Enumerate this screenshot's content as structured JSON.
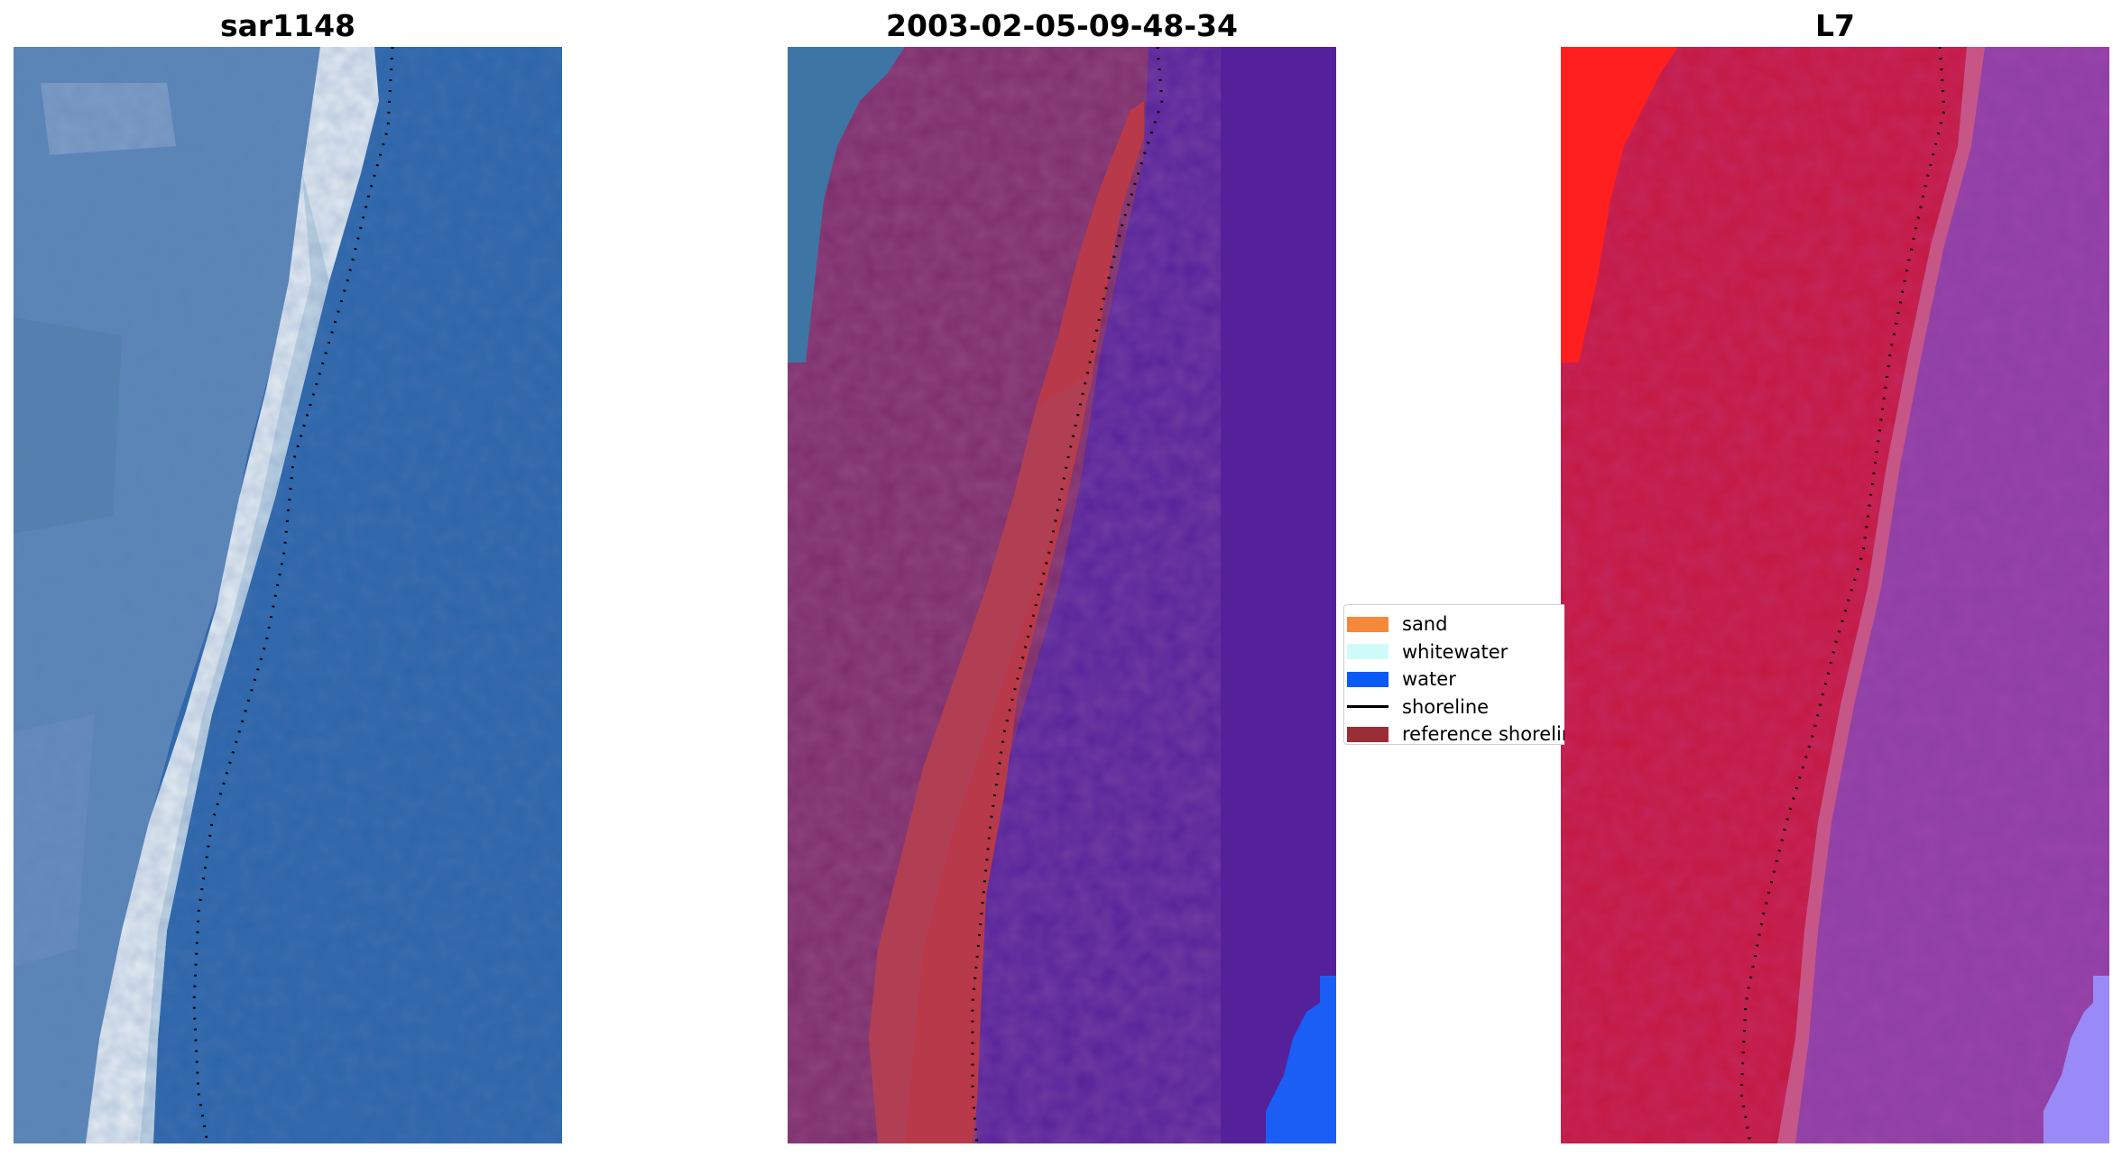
{
  "panels": [
    {
      "title": "sar1148",
      "image": "rgb-satellite-image"
    },
    {
      "title": "2003-02-05-09-48-34",
      "image": "classified-image"
    },
    {
      "title": "L7",
      "image": "mndwi-image"
    }
  ],
  "legend": {
    "items": [
      {
        "label": "sand",
        "color": "#f5883a",
        "kind": "patch"
      },
      {
        "label": "whitewater",
        "color": "#cffafa",
        "kind": "patch"
      },
      {
        "label": "water",
        "color": "#0a5af8",
        "kind": "patch"
      },
      {
        "label": "shoreline",
        "color": "#000000",
        "kind": "line"
      },
      {
        "label": "reference shoreline",
        "color": "#9a2e36",
        "kind": "patch"
      }
    ]
  },
  "colors": {
    "rgb_water": "#2a66ab",
    "rgb_land": "#4c7db6",
    "rgb_surf": "#e6eef2",
    "class_water": "#55219a",
    "class_land": "#7b2c6a",
    "class_red": "#b83a4a",
    "mndwi_land": "#c4173e",
    "mndwi_water": "#8c3ea4",
    "mndwi_red": "#ff2020",
    "corner_blue": "#1a5ef6",
    "corner_lavender": "#9a8af8"
  }
}
